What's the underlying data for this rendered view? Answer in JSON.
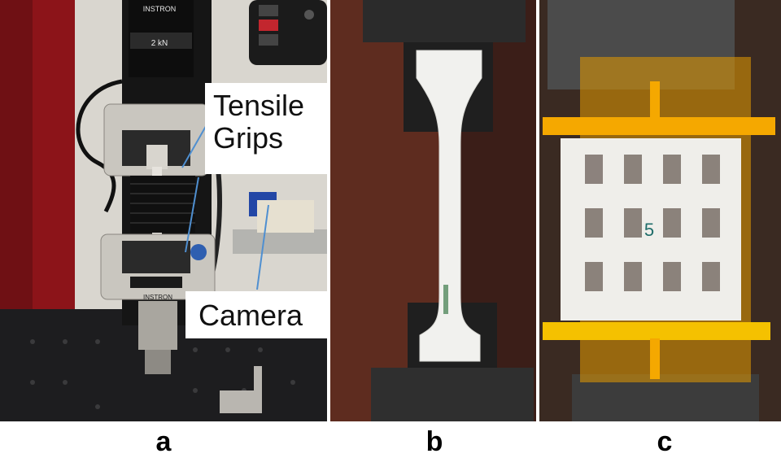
{
  "figure": {
    "panels": [
      {
        "letter": "a"
      },
      {
        "letter": "b"
      },
      {
        "letter": "c"
      }
    ],
    "callouts": {
      "tensile_grips_line1": "Tensile",
      "tensile_grips_line2": "Grips",
      "camera": "Camera"
    },
    "machine_labels": {
      "brand": "INSTRON",
      "load_cell": "2 kN"
    },
    "specimen_mark": "5"
  },
  "colors": {
    "callout_line": "#4f8fd0",
    "lattice_support": "#f5a800",
    "specimen": "#f1f1ee"
  }
}
